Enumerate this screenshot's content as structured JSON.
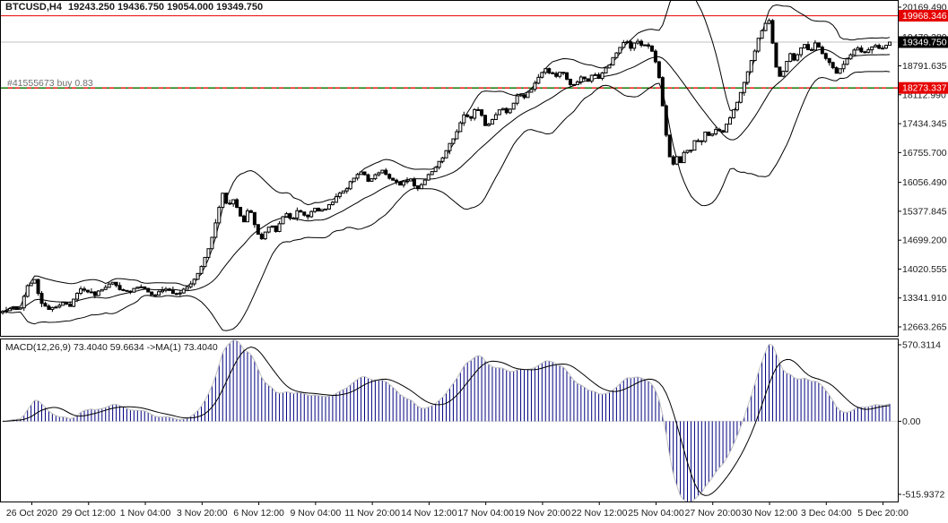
{
  "header": {
    "symbol_period": "BTCUSD,H4",
    "ohlc": "19243.250 19436.750 19054.000 19349.750",
    "open": "19243.250",
    "high": "19436.750",
    "low": "19054.000",
    "close": "19349.750"
  },
  "order": {
    "label": "#41555673 buy 0.83",
    "price": 18273.337
  },
  "colors": {
    "red": "#e60000",
    "green_dash": "#007f00",
    "silver": "#c0c0c0",
    "navy": "#000080",
    "black": "#000000",
    "background": "#ffffff"
  },
  "price_axis": {
    "ticks": [
      "20169.490",
      "19470.280",
      "18791.635",
      "18112.990",
      "17434.345",
      "16755.700",
      "16056.490",
      "15377.845",
      "14699.200",
      "14020.555",
      "13341.910",
      "12663.265"
    ],
    "boxed_labels": [
      {
        "text": "19968.346",
        "price": 19968.346,
        "bg": "red"
      },
      {
        "text": "19349.750",
        "price": 19349.75,
        "bg": "black"
      },
      {
        "text": "18273.337",
        "price": 18273.337,
        "bg": "red"
      }
    ]
  },
  "time_axis": {
    "labels": [
      "26 Oct 2020",
      "29 Oct 12:00",
      "1 Nov 04:00",
      "3 Nov 20:00",
      "6 Nov 12:00",
      "9 Nov 04:00",
      "11 Nov 20:00",
      "14 Nov 12:00",
      "17 Nov 04:00",
      "19 Nov 20:00",
      "22 Nov 12:00",
      "25 Nov 04:00",
      "27 Nov 20:00",
      "30 Nov 12:00",
      "3 Dec 04:00",
      "5 Dec 20:00"
    ]
  },
  "macd_pane": {
    "label": "MACD(12,26,9) 73.4040 59.6634  ->MA(1) 73.4040",
    "axis_max": "570.3114",
    "axis_zero": "0.00",
    "axis_min": "-515.9372"
  },
  "chart_data": {
    "type": "candlestick",
    "title": "BTCUSD H4 with Bollinger Bands and MACD(12,26,9)",
    "symbol": "BTCUSD",
    "timeframe": "H4",
    "ylim": [
      12663.265,
      20169.49
    ],
    "macd_ylim": [
      -515.9372,
      570.3114
    ],
    "grid": false,
    "marked_levels": [
      {
        "price": 19968.346,
        "style": "red-solid"
      },
      {
        "price": 19349.75,
        "style": "silver-current-price"
      },
      {
        "price": 18273.337,
        "style": "red-solid-with-green-dash-buy-order"
      }
    ],
    "indicators": {
      "bollinger": {
        "period": 20,
        "deviation": 2
      },
      "macd": {
        "fast": 12,
        "slow": 26,
        "signal": 9,
        "extra_ma": 1,
        "current": 73.404,
        "current_signal": 59.6634
      }
    },
    "price_path": [
      [
        3,
        13020
      ],
      [
        12,
        13100
      ],
      [
        22,
        13060
      ],
      [
        32,
        13690
      ],
      [
        40,
        13760
      ],
      [
        44,
        13300
      ],
      [
        52,
        13080
      ],
      [
        62,
        13150
      ],
      [
        70,
        13230
      ],
      [
        78,
        13120
      ],
      [
        88,
        13560
      ],
      [
        98,
        13500
      ],
      [
        106,
        13420
      ],
      [
        116,
        13600
      ],
      [
        126,
        13700
      ],
      [
        134,
        13510
      ],
      [
        144,
        13480
      ],
      [
        152,
        13620
      ],
      [
        162,
        13570
      ],
      [
        170,
        13380
      ],
      [
        178,
        13480
      ],
      [
        186,
        13580
      ],
      [
        194,
        13420
      ],
      [
        202,
        13480
      ],
      [
        210,
        13620
      ],
      [
        218,
        13800
      ],
      [
        226,
        14150
      ],
      [
        234,
        14600
      ],
      [
        241,
        15150
      ],
      [
        248,
        15820
      ],
      [
        254,
        15480
      ],
      [
        260,
        15680
      ],
      [
        266,
        15350
      ],
      [
        272,
        15150
      ],
      [
        278,
        15480
      ],
      [
        284,
        15050
      ],
      [
        290,
        14680
      ],
      [
        296,
        14900
      ],
      [
        302,
        15080
      ],
      [
        308,
        14880
      ],
      [
        314,
        15250
      ],
      [
        320,
        15320
      ],
      [
        326,
        15180
      ],
      [
        332,
        15400
      ],
      [
        338,
        15300
      ],
      [
        344,
        15250
      ],
      [
        350,
        15480
      ],
      [
        356,
        15380
      ],
      [
        362,
        15420
      ],
      [
        368,
        15550
      ],
      [
        374,
        15680
      ],
      [
        380,
        15820
      ],
      [
        386,
        15900
      ],
      [
        392,
        16100
      ],
      [
        398,
        16250
      ],
      [
        404,
        16320
      ],
      [
        410,
        16080
      ],
      [
        416,
        16200
      ],
      [
        422,
        16300
      ],
      [
        428,
        16320
      ],
      [
        434,
        16150
      ],
      [
        440,
        16080
      ],
      [
        446,
        15980
      ],
      [
        452,
        16080
      ],
      [
        458,
        16150
      ],
      [
        464,
        15880
      ],
      [
        470,
        15990
      ],
      [
        476,
        16180
      ],
      [
        482,
        16300
      ],
      [
        488,
        16480
      ],
      [
        494,
        16650
      ],
      [
        500,
        16900
      ],
      [
        506,
        17100
      ],
      [
        512,
        17380
      ],
      [
        518,
        17650
      ],
      [
        524,
        17520
      ],
      [
        530,
        17820
      ],
      [
        536,
        17720
      ],
      [
        542,
        17350
      ],
      [
        548,
        17480
      ],
      [
        554,
        17700
      ],
      [
        560,
        17820
      ],
      [
        566,
        17680
      ],
      [
        572,
        17880
      ],
      [
        578,
        18120
      ],
      [
        584,
        18050
      ],
      [
        590,
        18200
      ],
      [
        596,
        18350
      ],
      [
        602,
        18600
      ],
      [
        608,
        18720
      ],
      [
        614,
        18620
      ],
      [
        620,
        18550
      ],
      [
        626,
        18700
      ],
      [
        632,
        18480
      ],
      [
        638,
        18280
      ],
      [
        644,
        18420
      ],
      [
        650,
        18550
      ],
      [
        656,
        18420
      ],
      [
        662,
        18650
      ],
      [
        668,
        18480
      ],
      [
        674,
        18700
      ],
      [
        680,
        18850
      ],
      [
        686,
        19050
      ],
      [
        692,
        19250
      ],
      [
        698,
        19380
      ],
      [
        704,
        19200
      ],
      [
        710,
        19400
      ],
      [
        716,
        19280
      ],
      [
        722,
        19320
      ],
      [
        728,
        19080
      ],
      [
        734,
        18650
      ],
      [
        739,
        17850
      ],
      [
        744,
        16950
      ],
      [
        749,
        16380
      ],
      [
        754,
        16700
      ],
      [
        759,
        16520
      ],
      [
        764,
        16880
      ],
      [
        769,
        16720
      ],
      [
        775,
        17080
      ],
      [
        781,
        16980
      ],
      [
        787,
        17250
      ],
      [
        793,
        17120
      ],
      [
        799,
        17350
      ],
      [
        805,
        17220
      ],
      [
        811,
        17450
      ],
      [
        817,
        17700
      ],
      [
        823,
        18020
      ],
      [
        829,
        18380
      ],
      [
        835,
        18750
      ],
      [
        841,
        19120
      ],
      [
        847,
        19500
      ],
      [
        853,
        19800
      ],
      [
        858,
        19880
      ],
      [
        862,
        19250
      ],
      [
        866,
        18680
      ],
      [
        871,
        18480
      ],
      [
        876,
        18820
      ],
      [
        881,
        19080
      ],
      [
        886,
        18920
      ],
      [
        891,
        19150
      ],
      [
        897,
        19280
      ],
      [
        903,
        19120
      ],
      [
        909,
        19320
      ],
      [
        915,
        19160
      ],
      [
        921,
        18980
      ],
      [
        927,
        18820
      ],
      [
        933,
        18620
      ],
      [
        939,
        18780
      ],
      [
        945,
        18950
      ],
      [
        951,
        19120
      ],
      [
        957,
        19220
      ],
      [
        963,
        19080
      ],
      [
        969,
        19180
      ],
      [
        975,
        19280
      ],
      [
        981,
        19160
      ],
      [
        987,
        19240
      ],
      [
        992,
        19349.75
      ]
    ]
  }
}
